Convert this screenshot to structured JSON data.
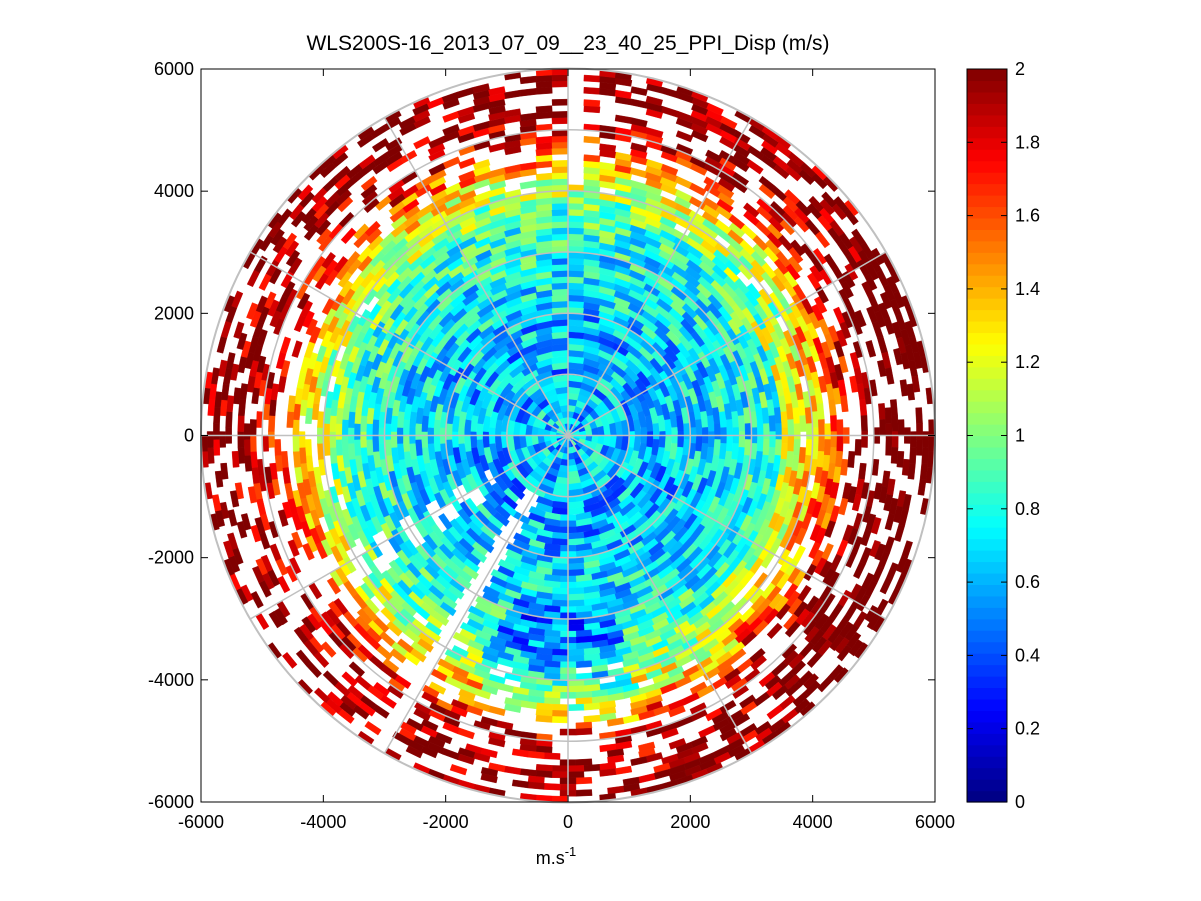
{
  "chart_data": {
    "type": "heatmap",
    "subtype": "polar-ppi",
    "title": "WLS200S-16_2013_07_09__23_40_25_PPI_Disp (m/s)",
    "xlabel_base": "m.s",
    "xlabel_exponent": "-1",
    "ylabel": "",
    "xlim": [
      -6000,
      6000
    ],
    "ylim": [
      -6000,
      6000
    ],
    "x_ticks": [
      -6000,
      -4000,
      -2000,
      0,
      2000,
      4000,
      6000
    ],
    "y_ticks": [
      6000,
      4000,
      2000,
      0,
      -2000,
      -4000,
      -6000
    ],
    "x_tick_labels": [
      "-6000",
      "-4000",
      "-2000",
      "0",
      "2000",
      "4000",
      "6000"
    ],
    "y_tick_labels": [
      "6000",
      "4000",
      "2000",
      "0",
      "-2000",
      "-4000",
      "-6000"
    ],
    "grid": true,
    "range_rings_m": [
      1000,
      2000,
      3000,
      4000,
      5000,
      6000
    ],
    "spoke_angles_deg": [
      0,
      30,
      60,
      90,
      120,
      150,
      180,
      210,
      240,
      270,
      300,
      330
    ],
    "max_range_m": 6000,
    "colorbar": {
      "colormap": "jet",
      "clim": [
        0,
        2
      ],
      "ticks": [
        0,
        0.2,
        0.4,
        0.6,
        0.8,
        1,
        1.2,
        1.4,
        1.6,
        1.8,
        2
      ],
      "tick_labels": [
        "0",
        "0.2",
        "0.4",
        "0.6",
        "0.8",
        "1",
        "1.2",
        "1.4",
        "1.6",
        "1.8",
        "2"
      ]
    },
    "field_profile": {
      "description": "radial profile of typical dispersion value by range",
      "range_m": [
        0,
        1500,
        2500,
        3500,
        4200,
        5000,
        5800,
        6000
      ],
      "typical_value": [
        0.65,
        0.6,
        0.7,
        0.85,
        1.2,
        1.9,
        2.0,
        2.0
      ]
    },
    "data_gaps_deg": [
      {
        "from": 0.5,
        "to": 1.8
      },
      {
        "from": 235,
        "to": 237
      },
      {
        "from": 239.5,
        "to": 242
      },
      {
        "from": 210,
        "to": 213.5
      }
    ]
  }
}
